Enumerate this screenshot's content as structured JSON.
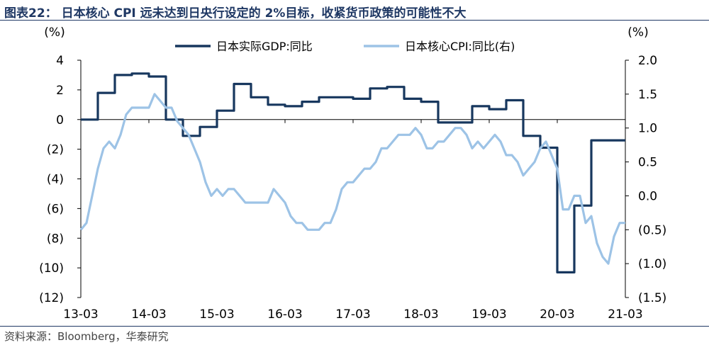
{
  "header": {
    "figure_title": "图表22：  日本核心 CPI 远未达到日央行设定的 2%目标，收紧货币政策的可能性不大"
  },
  "footer": {
    "source": "资料来源：Bloomberg，华泰研究"
  },
  "chart_data": {
    "type": "line",
    "title": "",
    "left_unit": "(%)",
    "right_unit": "(%)",
    "left_ylim": [
      -12,
      4
    ],
    "right_ylim": [
      -1.5,
      2.0
    ],
    "left_ticks": [
      4,
      2,
      0,
      -2,
      -4,
      -6,
      -8,
      -10,
      -12
    ],
    "left_tick_labels": [
      "4",
      "2",
      "0",
      "(2)",
      "(4)",
      "(6)",
      "(8)",
      "(10)",
      "(12)"
    ],
    "right_ticks": [
      2.0,
      1.5,
      1.0,
      0.5,
      0.0,
      -0.5,
      -1.0,
      -1.5
    ],
    "right_tick_labels": [
      "2.0",
      "1.5",
      "1.0",
      "0.5",
      "0.0",
      "(0.5)",
      "(1.0)",
      "(1.5)"
    ],
    "x_range": [
      "13-03",
      "21-03"
    ],
    "x_tick_labels": [
      "13-03",
      "14-03",
      "15-03",
      "16-03",
      "17-03",
      "18-03",
      "19-03",
      "20-03",
      "21-03"
    ],
    "series": [
      {
        "name": "日本实际GDP:同比",
        "axis": "left",
        "color": "#17375e",
        "step": true,
        "x": [
          "13-03",
          "13-06",
          "13-09",
          "13-12",
          "14-03",
          "14-06",
          "14-09",
          "14-12",
          "15-03",
          "15-06",
          "15-09",
          "15-12",
          "16-03",
          "16-06",
          "16-09",
          "16-12",
          "17-03",
          "17-06",
          "17-09",
          "17-12",
          "18-03",
          "18-06",
          "18-09",
          "18-12",
          "19-03",
          "19-06",
          "19-09",
          "19-12",
          "20-03",
          "20-06",
          "20-09",
          "20-12",
          "21-03"
        ],
        "values": [
          0.0,
          1.8,
          3.0,
          3.1,
          2.9,
          0.0,
          -1.1,
          -0.5,
          0.6,
          2.4,
          1.5,
          1.0,
          0.9,
          1.2,
          1.5,
          1.5,
          1.4,
          2.1,
          2.2,
          1.4,
          1.2,
          -0.2,
          -0.2,
          0.9,
          0.7,
          1.3,
          -1.1,
          -1.9,
          -10.3,
          -5.8,
          -1.4,
          -1.4,
          -1.4
        ]
      },
      {
        "name": "日本核心CPI:同比(右)",
        "axis": "right",
        "color": "#9dc3e6",
        "step": false,
        "x": [
          "13-03",
          "13-04",
          "13-05",
          "13-06",
          "13-07",
          "13-08",
          "13-09",
          "13-10",
          "13-11",
          "13-12",
          "14-01",
          "14-02",
          "14-03",
          "14-04",
          "14-05",
          "14-06",
          "14-07",
          "14-08",
          "14-09",
          "14-10",
          "14-11",
          "14-12",
          "15-01",
          "15-02",
          "15-03",
          "15-04",
          "15-05",
          "15-06",
          "15-07",
          "15-08",
          "15-09",
          "15-10",
          "15-11",
          "15-12",
          "16-01",
          "16-02",
          "16-03",
          "16-04",
          "16-05",
          "16-06",
          "16-07",
          "16-08",
          "16-09",
          "16-10",
          "16-11",
          "16-12",
          "17-01",
          "17-02",
          "17-03",
          "17-04",
          "17-05",
          "17-06",
          "17-07",
          "17-08",
          "17-09",
          "17-10",
          "17-11",
          "17-12",
          "18-01",
          "18-02",
          "18-03",
          "18-04",
          "18-05",
          "18-06",
          "18-07",
          "18-08",
          "18-09",
          "18-10",
          "18-11",
          "18-12",
          "19-01",
          "19-02",
          "19-03",
          "19-04",
          "19-05",
          "19-06",
          "19-07",
          "19-08",
          "19-09",
          "19-10",
          "19-11",
          "19-12",
          "20-01",
          "20-02",
          "20-03",
          "20-04",
          "20-05",
          "20-06",
          "20-07",
          "20-08",
          "20-09",
          "20-10",
          "20-11",
          "20-12",
          "21-01",
          "21-02",
          "21-03"
        ],
        "values": [
          -0.5,
          -0.4,
          0.0,
          0.4,
          0.7,
          0.8,
          0.7,
          0.9,
          1.2,
          1.3,
          1.3,
          1.3,
          1.3,
          1.5,
          1.4,
          1.3,
          1.3,
          1.1,
          1.0,
          0.9,
          0.7,
          0.5,
          0.2,
          0.0,
          0.1,
          0.0,
          0.1,
          0.1,
          0.0,
          -0.1,
          -0.1,
          -0.1,
          -0.1,
          -0.1,
          0.1,
          0.0,
          -0.1,
          -0.3,
          -0.4,
          -0.4,
          -0.5,
          -0.5,
          -0.5,
          -0.4,
          -0.4,
          -0.2,
          0.1,
          0.2,
          0.2,
          0.3,
          0.4,
          0.4,
          0.5,
          0.7,
          0.7,
          0.8,
          0.9,
          0.9,
          0.9,
          1.0,
          0.9,
          0.7,
          0.7,
          0.8,
          0.8,
          0.9,
          1.0,
          1.0,
          0.9,
          0.7,
          0.8,
          0.7,
          0.8,
          0.9,
          0.8,
          0.6,
          0.6,
          0.5,
          0.3,
          0.4,
          0.5,
          0.7,
          0.8,
          0.6,
          0.4,
          -0.2,
          -0.2,
          0.0,
          0.0,
          -0.4,
          -0.3,
          -0.7,
          -0.9,
          -1.0,
          -0.6,
          -0.4,
          -0.4
        ]
      }
    ],
    "legend_position": "top",
    "grid": false
  }
}
